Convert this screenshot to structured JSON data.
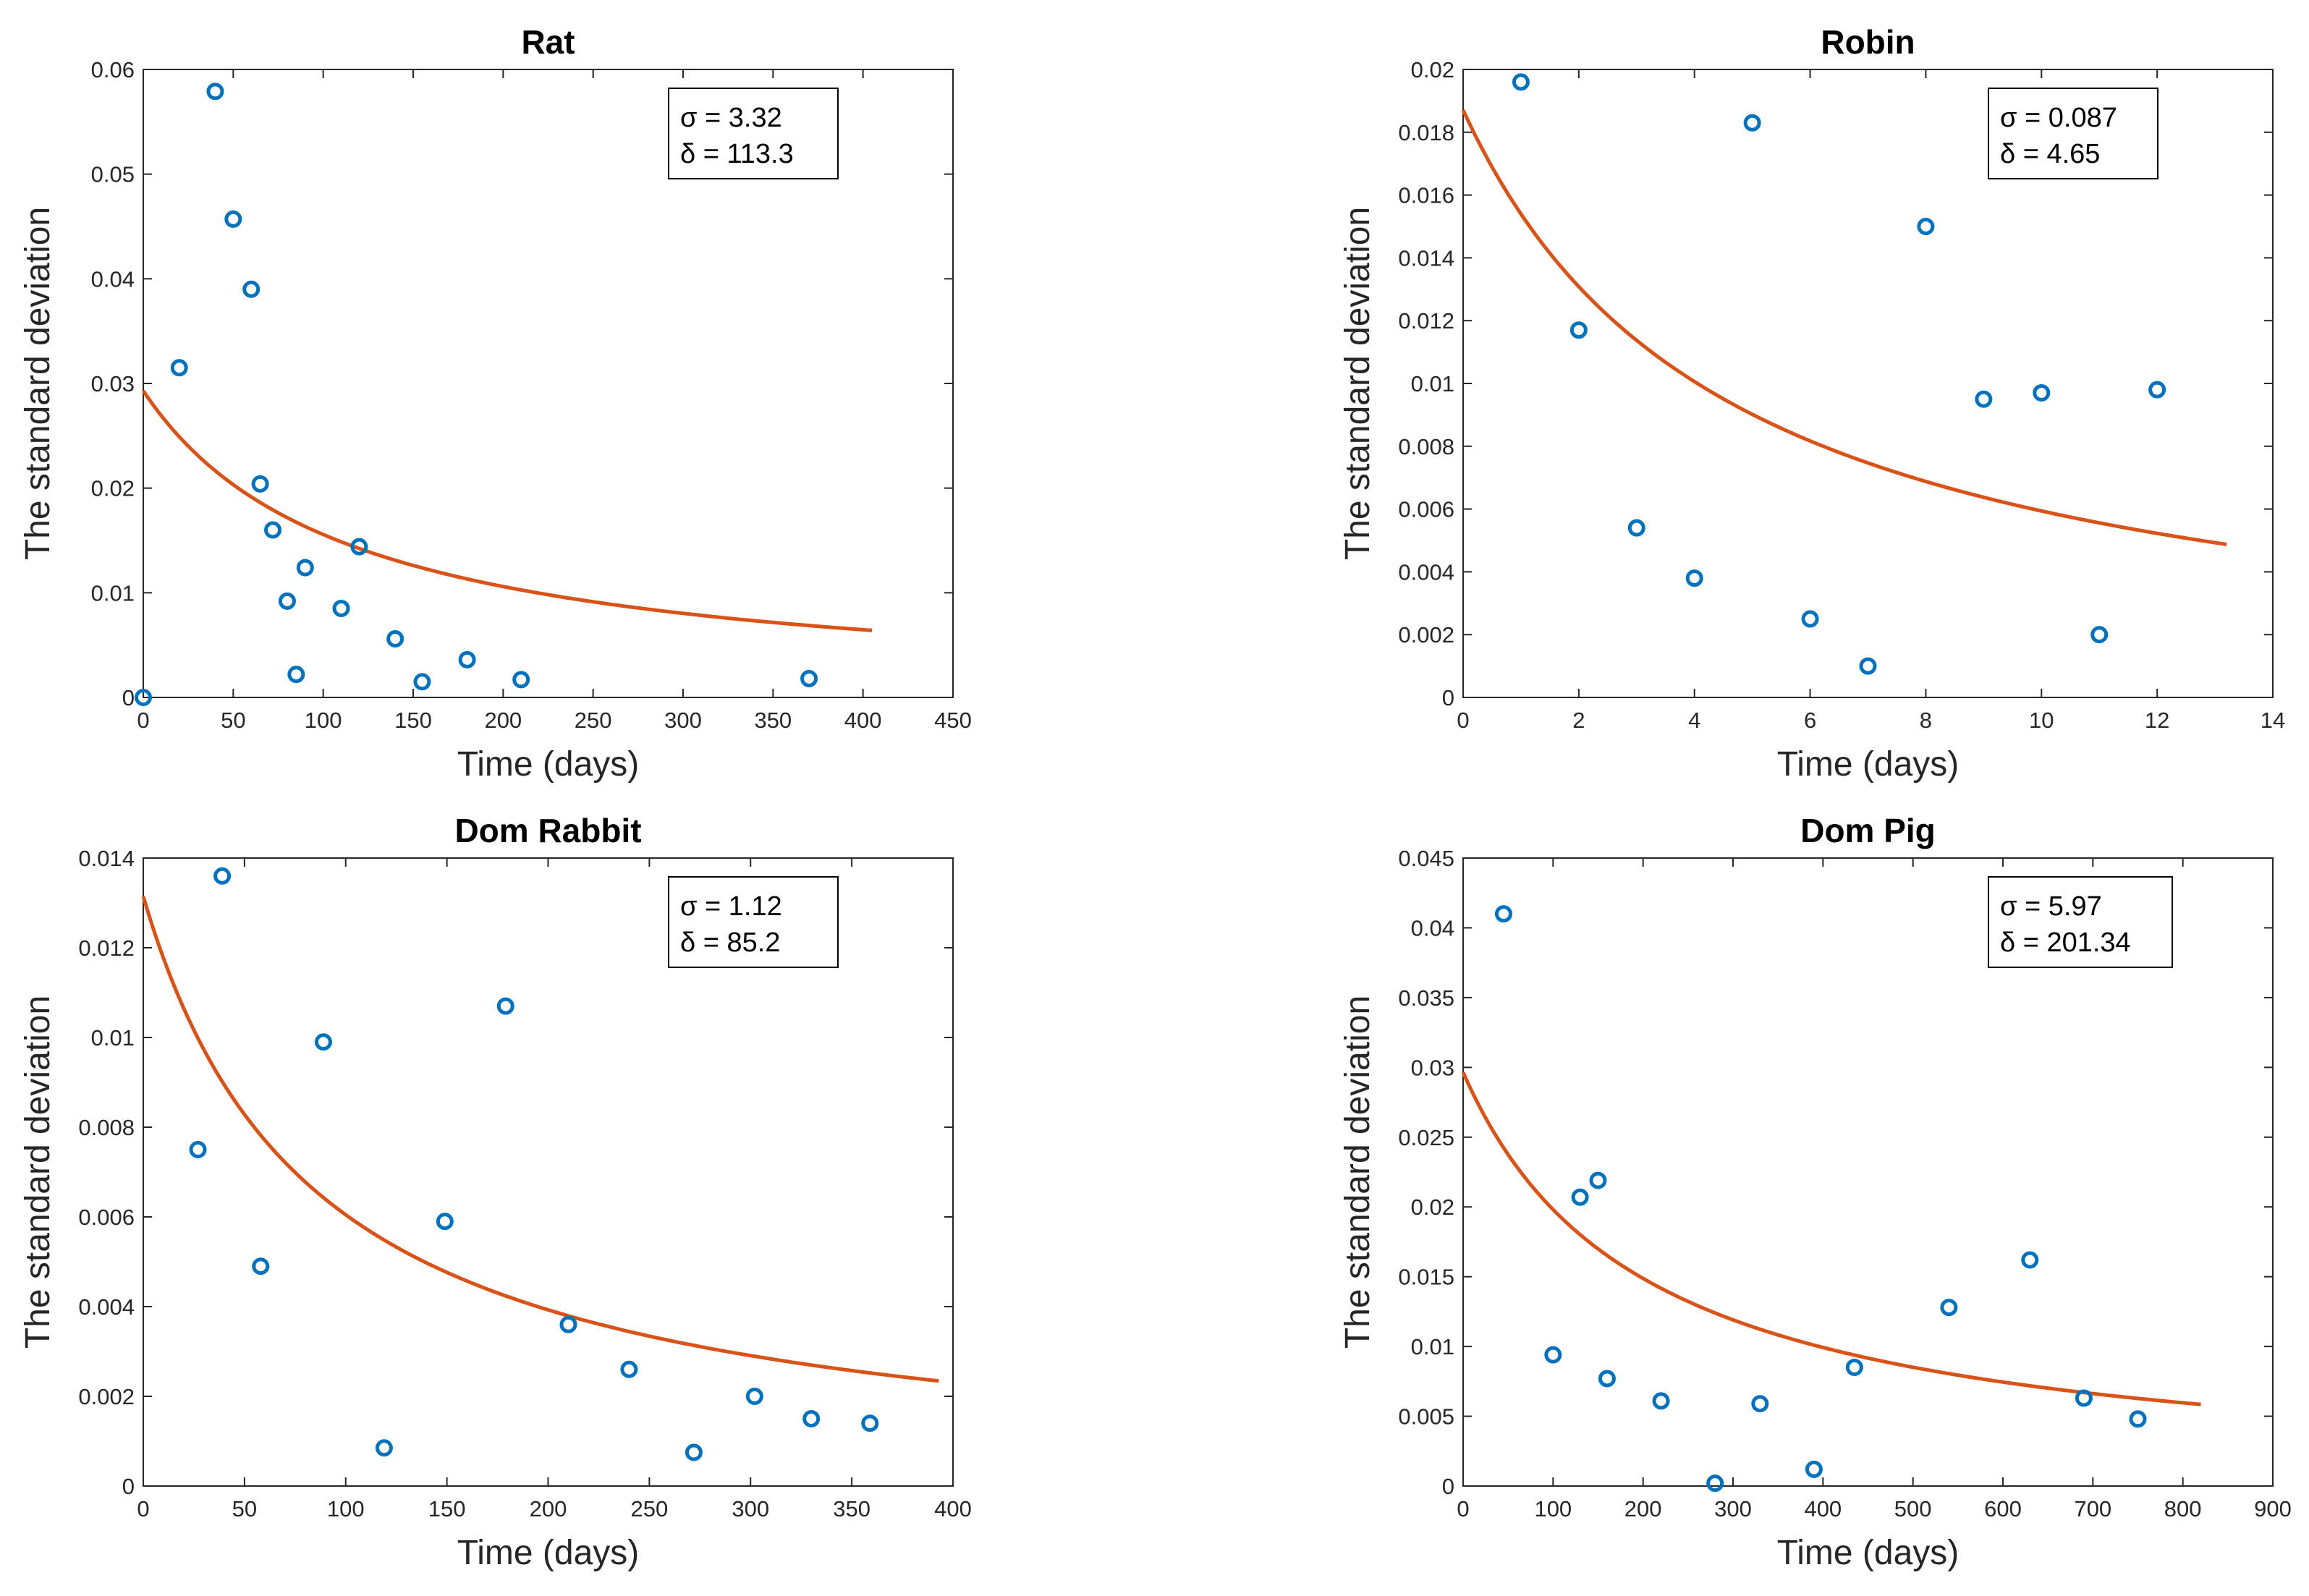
{
  "figure": {
    "colors": {
      "points": "#0072BD",
      "fit": "#D95319",
      "axes": "#262626"
    }
  },
  "chart_data": [
    {
      "type": "scatter",
      "title": "Rat",
      "xlabel": "Time (days)",
      "ylabel": "The standard deviation",
      "xlim": [
        0,
        450
      ],
      "ylim": [
        0,
        0.06
      ],
      "xticks": [
        0,
        50,
        100,
        150,
        200,
        250,
        300,
        350,
        400,
        450
      ],
      "xtick_labels": [
        "0",
        "50",
        "100",
        "150",
        "200",
        "250",
        "300",
        "350",
        "400",
        "450"
      ],
      "yticks": [
        0,
        0.01,
        0.02,
        0.03,
        0.04,
        0.05,
        0.06
      ],
      "ytick_labels": [
        "0",
        "0.01",
        "0.02",
        "0.03",
        "0.04",
        "0.05",
        "0.06"
      ],
      "grid": false,
      "annotation": {
        "sigma_label": "σ = 3.32",
        "delta_label": "δ = 113.3",
        "position": "top-right"
      },
      "fit": {
        "sigma": 3.32,
        "delta": 113.3,
        "x_end": 405
      },
      "points": [
        [
          0,
          0.0
        ],
        [
          20,
          0.0315
        ],
        [
          40,
          0.0579
        ],
        [
          50,
          0.0457
        ],
        [
          60,
          0.039
        ],
        [
          65,
          0.0204
        ],
        [
          72,
          0.016
        ],
        [
          80,
          0.0092
        ],
        [
          85,
          0.0022
        ],
        [
          90,
          0.0124
        ],
        [
          110,
          0.0085
        ],
        [
          120,
          0.0144
        ],
        [
          140,
          0.0056
        ],
        [
          155,
          0.0015
        ],
        [
          180,
          0.0036
        ],
        [
          210,
          0.0017
        ],
        [
          370,
          0.0018
        ]
      ]
    },
    {
      "type": "scatter",
      "title": "Robin",
      "xlabel": "Time (days)",
      "ylabel": "The standard deviation",
      "xlim": [
        0,
        14
      ],
      "ylim": [
        0,
        0.02
      ],
      "xticks": [
        0,
        2,
        4,
        6,
        8,
        10,
        12,
        14
      ],
      "xtick_labels": [
        "0",
        "2",
        "4",
        "6",
        "8",
        "10",
        "12",
        "14"
      ],
      "yticks": [
        0,
        0.002,
        0.004,
        0.006,
        0.008,
        0.01,
        0.012,
        0.014,
        0.016,
        0.018,
        0.02
      ],
      "ytick_labels": [
        "0",
        "0.002",
        "0.004",
        "0.006",
        "0.008",
        "0.01",
        "0.012",
        "0.014",
        "0.016",
        "0.018",
        "0.02"
      ],
      "grid": false,
      "annotation": {
        "sigma_label": "σ = 0.087",
        "delta_label": "δ = 4.65",
        "position": "top-right"
      },
      "fit": {
        "sigma": 0.087,
        "delta": 4.65,
        "x_end": 13.2
      },
      "points": [
        [
          1,
          0.0196
        ],
        [
          2,
          0.0117
        ],
        [
          3,
          0.0054
        ],
        [
          4,
          0.0038
        ],
        [
          5,
          0.0183
        ],
        [
          6,
          0.0025
        ],
        [
          7,
          0.001
        ],
        [
          8,
          0.015
        ],
        [
          9,
          0.0095
        ],
        [
          10,
          0.0097
        ],
        [
          11,
          0.002
        ],
        [
          12,
          0.0098
        ]
      ]
    },
    {
      "type": "scatter",
      "title": "Dom Rabbit",
      "xlabel": "Time (days)",
      "ylabel": "The standard deviation",
      "xlim": [
        0,
        400
      ],
      "ylim": [
        0,
        0.014
      ],
      "xticks": [
        0,
        50,
        100,
        150,
        200,
        250,
        300,
        350,
        400
      ],
      "xtick_labels": [
        "0",
        "50",
        "100",
        "150",
        "200",
        "250",
        "300",
        "350",
        "400"
      ],
      "yticks": [
        0,
        0.002,
        0.004,
        0.006,
        0.008,
        0.01,
        0.012,
        0.014
      ],
      "ytick_labels": [
        "0",
        "0.002",
        "0.004",
        "0.006",
        "0.008",
        "0.01",
        "0.012",
        "0.014"
      ],
      "grid": false,
      "annotation": {
        "sigma_label": "σ = 1.12",
        "delta_label": "δ = 85.2",
        "position": "top-right"
      },
      "fit": {
        "sigma": 1.12,
        "delta": 85.2,
        "x_end": 393
      },
      "points": [
        [
          27,
          0.0075
        ],
        [
          39,
          0.0136
        ],
        [
          58,
          0.0049
        ],
        [
          89,
          0.0099
        ],
        [
          119,
          0.00085
        ],
        [
          149,
          0.0059
        ],
        [
          179,
          0.0107
        ],
        [
          210,
          0.0036
        ],
        [
          240,
          0.0026
        ],
        [
          272,
          0.00075
        ],
        [
          302,
          0.002
        ],
        [
          330,
          0.0015
        ],
        [
          359,
          0.0014
        ]
      ]
    },
    {
      "type": "scatter",
      "title": "Dom Pig",
      "xlabel": "Time (days)",
      "ylabel": "The standard deviation",
      "xlim": [
        0,
        900
      ],
      "ylim": [
        0,
        0.045
      ],
      "xticks": [
        0,
        100,
        200,
        300,
        400,
        500,
        600,
        700,
        800,
        900
      ],
      "xtick_labels": [
        "0",
        "100",
        "200",
        "300",
        "400",
        "500",
        "600",
        "700",
        "800",
        "900"
      ],
      "yticks": [
        0,
        0.005,
        0.01,
        0.015,
        0.02,
        0.025,
        0.03,
        0.035,
        0.04,
        0.045
      ],
      "ytick_labels": [
        "0",
        "0.005",
        "0.01",
        "0.015",
        "0.02",
        "0.025",
        "0.03",
        "0.035",
        "0.04",
        "0.045"
      ],
      "grid": false,
      "annotation": {
        "sigma_label": "σ = 5.97",
        "delta_label": "δ = 201.34",
        "position": "top-right"
      },
      "fit": {
        "sigma": 5.97,
        "delta": 201.34,
        "x_end": 820
      },
      "points": [
        [
          45,
          0.041
        ],
        [
          100,
          0.0094
        ],
        [
          130,
          0.0207
        ],
        [
          150,
          0.0219
        ],
        [
          160,
          0.0077
        ],
        [
          220,
          0.0061
        ],
        [
          280,
          0.0002
        ],
        [
          330,
          0.0059
        ],
        [
          390,
          0.0012
        ],
        [
          435,
          0.0085
        ],
        [
          540,
          0.0128
        ],
        [
          630,
          0.0162
        ],
        [
          690,
          0.0063
        ],
        [
          750,
          0.0048
        ]
      ]
    }
  ]
}
